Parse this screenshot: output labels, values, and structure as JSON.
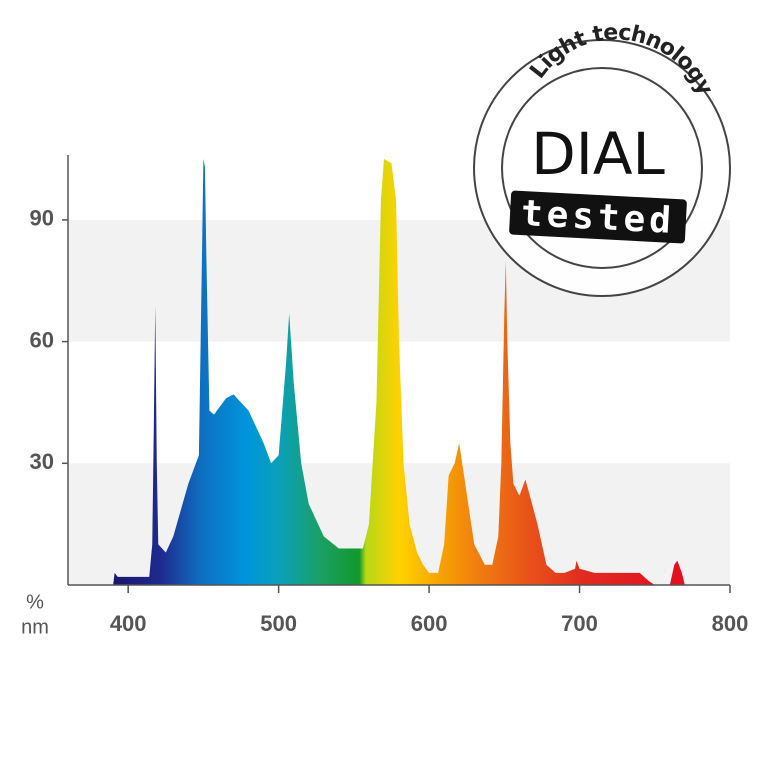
{
  "chart_data": {
    "type": "area",
    "x_unit_label": "nm",
    "y_unit_label": "%",
    "x": [
      390,
      391,
      393,
      400,
      414,
      416,
      417,
      418,
      419,
      420,
      425,
      430,
      440,
      447,
      449,
      450,
      451,
      452,
      454,
      457,
      465,
      470,
      480,
      490,
      495,
      500,
      505,
      507,
      510,
      515,
      520,
      530,
      540,
      550,
      556,
      560,
      565,
      568,
      570,
      575,
      578,
      580,
      583,
      587,
      592,
      596,
      600,
      606,
      610,
      613,
      617,
      620,
      622,
      626,
      630,
      637,
      642,
      646,
      648,
      650,
      651,
      652,
      654,
      656,
      660,
      664,
      667,
      672,
      678,
      684,
      690,
      697,
      698,
      700,
      710,
      730,
      740,
      746,
      750,
      760,
      763,
      765,
      768,
      770
    ],
    "values": [
      0,
      3,
      2,
      2,
      2,
      10,
      38,
      69,
      30,
      10,
      8,
      12,
      25,
      32,
      80,
      105,
      103,
      80,
      43,
      42,
      46,
      47,
      43,
      35,
      30,
      32,
      55,
      67,
      50,
      30,
      20,
      12,
      9,
      9,
      9,
      15,
      45,
      95,
      105,
      104,
      95,
      60,
      30,
      15,
      8,
      5,
      3,
      3,
      10,
      27,
      30,
      35,
      30,
      20,
      10,
      5,
      5,
      12,
      30,
      67,
      80,
      60,
      35,
      25,
      22,
      26,
      22,
      15,
      5,
      3,
      3,
      4,
      6,
      4,
      3,
      3,
      3,
      1,
      0,
      0,
      5,
      6,
      3,
      0
    ],
    "xlim": [
      360,
      800
    ],
    "xticks": [
      400,
      500,
      600,
      700,
      800
    ],
    "ylim": [
      0,
      106
    ],
    "yticks": [
      30,
      60,
      90
    ],
    "grid": "bands"
  },
  "badge": {
    "arc_text": "Light technology",
    "logo": "DIAL",
    "stamp": "tested"
  }
}
